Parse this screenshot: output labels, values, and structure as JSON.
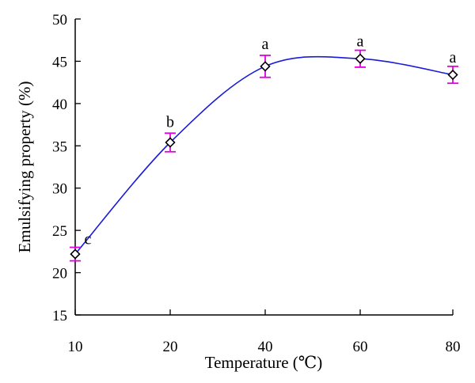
{
  "chart_data": {
    "type": "line",
    "title": "",
    "xlabel": "Temperature (℃)",
    "ylabel": "Emulsifying property (%)",
    "categories": [
      "10",
      "20",
      "40",
      "60",
      "80"
    ],
    "ylim": [
      15,
      50
    ],
    "yticks": [
      "15",
      "20",
      "25",
      "30",
      "35",
      "40",
      "45",
      "50"
    ],
    "series": [
      {
        "values": [
          22.2,
          35.4,
          44.4,
          45.3,
          43.4
        ],
        "errors": [
          0.8,
          1.1,
          1.3,
          1.0,
          1.0
        ],
        "significance": [
          "c",
          "b",
          "a",
          "a",
          "a"
        ],
        "color": "#1a1adc",
        "marker": "diamond",
        "marker_color": "#000000",
        "error_color": "#e000e0"
      }
    ],
    "grid": false,
    "legend": "none"
  }
}
